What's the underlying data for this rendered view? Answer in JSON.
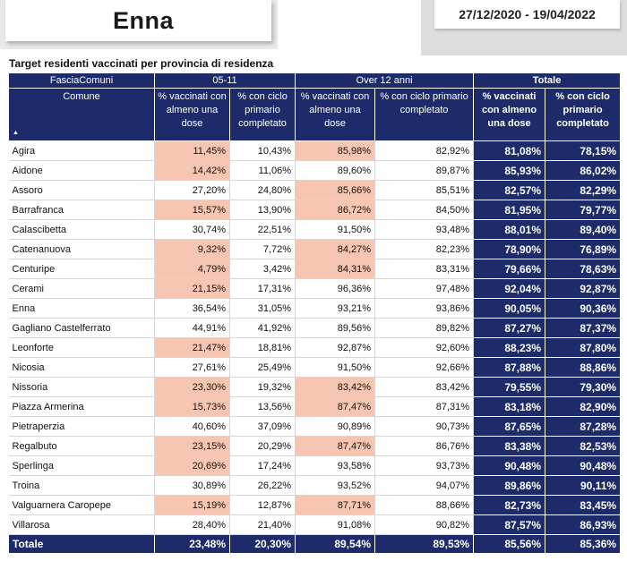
{
  "header": {
    "province": "Enna",
    "date_range": "27/12/2020 - 19/04/2022"
  },
  "table": {
    "title": "Target residenti vaccinati per provincia di residenza",
    "group_headers": {
      "label": "FasciaComuni",
      "g1": "05-11",
      "g2": "Over 12 anni",
      "g3": "Totale"
    },
    "columns": {
      "name": "Comune",
      "c1": "% vaccinati con almeno una dose",
      "c2": "% con ciclo primario completato",
      "c3": "% vaccinati con almeno una dose",
      "c4": "% con ciclo primario completato",
      "c5": "% vaccinati con almeno una dose",
      "c6": "% con ciclo primario completato"
    },
    "highlight_color": "#f7c6b3",
    "header_color": "#1d2b6b",
    "rows": [
      {
        "name": "Agira",
        "c1": "11,45%",
        "c2": "10,43%",
        "c3": "85,98%",
        "c4": "82,92%",
        "c5": "81,08%",
        "c6": "78,15%",
        "h1": true,
        "h3": true
      },
      {
        "name": "Aidone",
        "c1": "14,42%",
        "c2": "11,06%",
        "c3": "89,60%",
        "c4": "89,87%",
        "c5": "85,93%",
        "c6": "86,02%",
        "h1": true,
        "h3": false
      },
      {
        "name": "Assoro",
        "c1": "27,20%",
        "c2": "24,80%",
        "c3": "85,66%",
        "c4": "85,51%",
        "c5": "82,57%",
        "c6": "82,29%",
        "h1": false,
        "h3": true
      },
      {
        "name": "Barrafranca",
        "c1": "15,57%",
        "c2": "13,90%",
        "c3": "86,72%",
        "c4": "84,50%",
        "c5": "81,95%",
        "c6": "79,77%",
        "h1": true,
        "h3": true
      },
      {
        "name": "Calascibetta",
        "c1": "30,74%",
        "c2": "22,51%",
        "c3": "91,50%",
        "c4": "93,48%",
        "c5": "88,01%",
        "c6": "89,40%",
        "h1": false,
        "h3": false
      },
      {
        "name": "Catenanuova",
        "c1": "9,32%",
        "c2": "7,72%",
        "c3": "84,27%",
        "c4": "82,23%",
        "c5": "78,90%",
        "c6": "76,89%",
        "h1": true,
        "h3": true
      },
      {
        "name": "Centuripe",
        "c1": "4,79%",
        "c2": "3,42%",
        "c3": "84,31%",
        "c4": "83,31%",
        "c5": "79,66%",
        "c6": "78,63%",
        "h1": true,
        "h3": true
      },
      {
        "name": "Cerami",
        "c1": "21,15%",
        "c2": "17,31%",
        "c3": "96,36%",
        "c4": "97,48%",
        "c5": "92,04%",
        "c6": "92,87%",
        "h1": true,
        "h3": false
      },
      {
        "name": "Enna",
        "c1": "36,54%",
        "c2": "31,05%",
        "c3": "93,21%",
        "c4": "93,86%",
        "c5": "90,05%",
        "c6": "90,36%",
        "h1": false,
        "h3": false
      },
      {
        "name": "Gagliano Castelferrato",
        "c1": "44,91%",
        "c2": "41,92%",
        "c3": "89,56%",
        "c4": "89,82%",
        "c5": "87,27%",
        "c6": "87,37%",
        "h1": false,
        "h3": false
      },
      {
        "name": "Leonforte",
        "c1": "21,47%",
        "c2": "18,81%",
        "c3": "92,87%",
        "c4": "92,60%",
        "c5": "88,23%",
        "c6": "87,80%",
        "h1": true,
        "h3": false
      },
      {
        "name": "Nicosia",
        "c1": "27,61%",
        "c2": "25,49%",
        "c3": "91,50%",
        "c4": "92,66%",
        "c5": "87,88%",
        "c6": "88,86%",
        "h1": false,
        "h3": false
      },
      {
        "name": "Nissoria",
        "c1": "23,30%",
        "c2": "19,32%",
        "c3": "83,42%",
        "c4": "83,42%",
        "c5": "79,55%",
        "c6": "79,30%",
        "h1": true,
        "h3": true
      },
      {
        "name": "Piazza Armerina",
        "c1": "15,73%",
        "c2": "13,56%",
        "c3": "87,47%",
        "c4": "87,31%",
        "c5": "83,18%",
        "c6": "82,90%",
        "h1": true,
        "h3": true
      },
      {
        "name": "Pietraperzia",
        "c1": "40,60%",
        "c2": "37,09%",
        "c3": "90,89%",
        "c4": "90,73%",
        "c5": "87,65%",
        "c6": "87,28%",
        "h1": false,
        "h3": false
      },
      {
        "name": "Regalbuto",
        "c1": "23,15%",
        "c2": "20,29%",
        "c3": "87,47%",
        "c4": "86,76%",
        "c5": "83,38%",
        "c6": "82,53%",
        "h1": true,
        "h3": true
      },
      {
        "name": "Sperlinga",
        "c1": "20,69%",
        "c2": "17,24%",
        "c3": "93,58%",
        "c4": "93,73%",
        "c5": "90,48%",
        "c6": "90,48%",
        "h1": true,
        "h3": false
      },
      {
        "name": "Troina",
        "c1": "30,89%",
        "c2": "26,22%",
        "c3": "93,52%",
        "c4": "94,07%",
        "c5": "89,86%",
        "c6": "90,11%",
        "h1": false,
        "h3": false
      },
      {
        "name": "Valguarnera Caropepe",
        "c1": "15,19%",
        "c2": "12,87%",
        "c3": "87,71%",
        "c4": "88,66%",
        "c5": "82,73%",
        "c6": "83,45%",
        "h1": true,
        "h3": true
      },
      {
        "name": "Villarosa",
        "c1": "28,40%",
        "c2": "21,40%",
        "c3": "91,08%",
        "c4": "90,82%",
        "c5": "87,57%",
        "c6": "86,93%",
        "h1": false,
        "h3": false
      }
    ],
    "total": {
      "name": "Totale",
      "c1": "23,48%",
      "c2": "20,30%",
      "c3": "89,54%",
      "c4": "89,53%",
      "c5": "85,56%",
      "c6": "85,36%"
    }
  }
}
